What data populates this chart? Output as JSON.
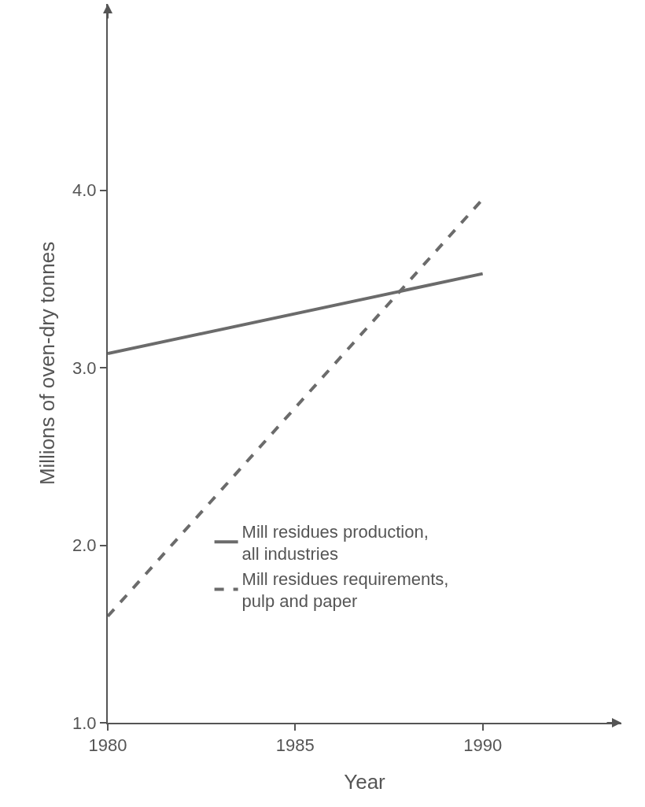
{
  "chart_data": {
    "type": "line",
    "xlabel": "Year",
    "ylabel": "Millions of oven-dry tonnes",
    "x": [
      1980,
      1990
    ],
    "series": [
      {
        "name": "Mill residues production,\nall industries",
        "color": "#6b6b6b",
        "values": [
          3.08,
          3.53
        ],
        "line_style": "solid"
      },
      {
        "name": "Mill residues requirements,\npulp and paper",
        "color": "#6b6b6b",
        "values": [
          1.6,
          3.95
        ],
        "line_style": "dashed"
      }
    ],
    "xlim": [
      1980,
      1993.7
    ],
    "xticks": [
      1980,
      1985,
      1990
    ],
    "ylim": [
      1.0,
      5.05
    ],
    "yticks": [
      {
        "value": 1,
        "label": "1.0"
      },
      {
        "value": 2,
        "label": "2.0"
      },
      {
        "value": 3,
        "label": "3.0"
      },
      {
        "value": 4,
        "label": "4.0"
      }
    ],
    "grid": false,
    "legend": "bottom",
    "marker": "none"
  }
}
